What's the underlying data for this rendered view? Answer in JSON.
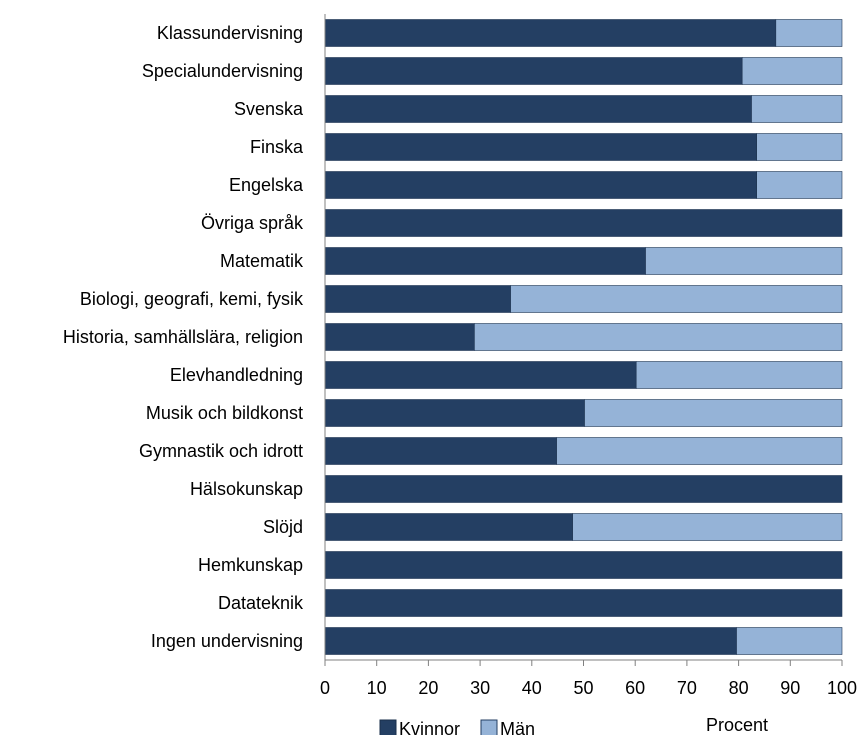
{
  "chart_data": {
    "type": "bar",
    "orientation": "horizontal",
    "stacked": true,
    "categories": [
      "Klassundervisning",
      "Specialundervisning",
      "Svenska",
      "Finska",
      "Engelska",
      "Övriga språk",
      "Matematik",
      "Biologi, geografi, kemi, fysik",
      "Historia, samhällslära, religion",
      "Elevhandledning",
      "Musik och bildkonst",
      "Gymnastik och idrott",
      "Hälsokunskap",
      "Slöjd",
      "Hemkunskap",
      "Datateknik",
      "Ingen undervisning"
    ],
    "series": [
      {
        "name": "Kvinnor",
        "color": "#243f63",
        "values": [
          87.2,
          80.7,
          82.5,
          83.5,
          83.5,
          100,
          62.0,
          35.9,
          28.9,
          60.2,
          50.2,
          44.8,
          100,
          47.9,
          100,
          100,
          79.6
        ]
      },
      {
        "name": "Män",
        "color": "#95b3d7",
        "values": [
          12.8,
          19.3,
          17.5,
          16.5,
          16.5,
          0,
          38.0,
          64.1,
          71.1,
          39.8,
          49.8,
          55.2,
          0,
          52.1,
          0,
          0,
          20.4
        ]
      }
    ],
    "xlim": [
      0,
      100
    ],
    "xticks": [
      0,
      10,
      20,
      30,
      40,
      50,
      60,
      70,
      80,
      90,
      100
    ],
    "xlabel": "Procent",
    "title": "",
    "grid": false,
    "legend_position": "bottom"
  }
}
